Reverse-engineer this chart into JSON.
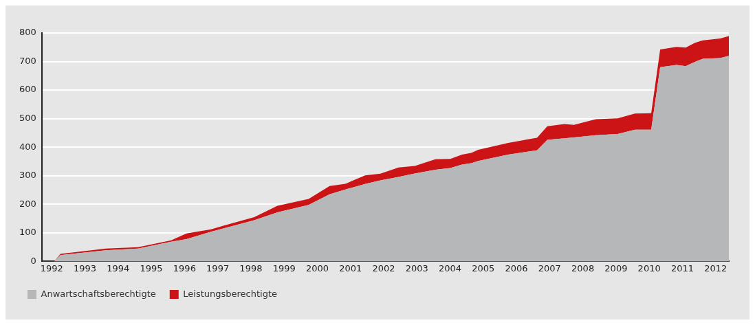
{
  "chart_data": {
    "type": "area",
    "stacked": true,
    "x": [
      1992.07,
      1992.26,
      1993.63,
      1994.6,
      1995.6,
      1996.06,
      1996.8,
      1997.17,
      1998.1,
      1998.8,
      1999.74,
      2000.37,
      2000.85,
      2001.44,
      2001.9,
      2002.45,
      2002.94,
      2003.56,
      2004.01,
      2004.36,
      2004.64,
      2004.85,
      2005.75,
      2006.62,
      2006.93,
      2007.45,
      2007.73,
      2008.39,
      2009.05,
      2009.57,
      2010.06,
      2010.33,
      2010.82,
      2011.1,
      2011.38,
      2011.62,
      2012.14,
      2012.4
    ],
    "series": [
      {
        "name": "Anwartschaftsberechtigte",
        "color": "#b6b7b9",
        "values": [
          0,
          22,
          39,
          45,
          69,
          78,
          104,
          115,
          144,
          172,
          198,
          235,
          252,
          271,
          284,
          296,
          308,
          321,
          327,
          339,
          344,
          352,
          374,
          389,
          426,
          431,
          434,
          442,
          446,
          461,
          461,
          680,
          688,
          684,
          699,
          710,
          712,
          720
        ]
      },
      {
        "name": "Leistungsberechtigte",
        "color": "#cc1417",
        "values": [
          0,
          4,
          6,
          5,
          5,
          20,
          8,
          10,
          11,
          23,
          21,
          29,
          20,
          30,
          23,
          33,
          26,
          37,
          32,
          35,
          36,
          39,
          41,
          44,
          47,
          50,
          44,
          56,
          55,
          57,
          58,
          62,
          63,
          65,
          67,
          64,
          69,
          69
        ]
      }
    ],
    "xlim": [
      1991.7,
      2012.4
    ],
    "xticks": [
      1992,
      1993,
      1994,
      1995,
      1996,
      1997,
      1998,
      1999,
      2000,
      2001,
      2002,
      2003,
      2004,
      2005,
      2006,
      2007,
      2008,
      2009,
      2010,
      2011,
      2012
    ],
    "ylim": [
      0,
      800
    ],
    "yticks": [
      0,
      100,
      200,
      300,
      400,
      500,
      600,
      700,
      800
    ],
    "grid": "y",
    "legend": "bottom left"
  }
}
